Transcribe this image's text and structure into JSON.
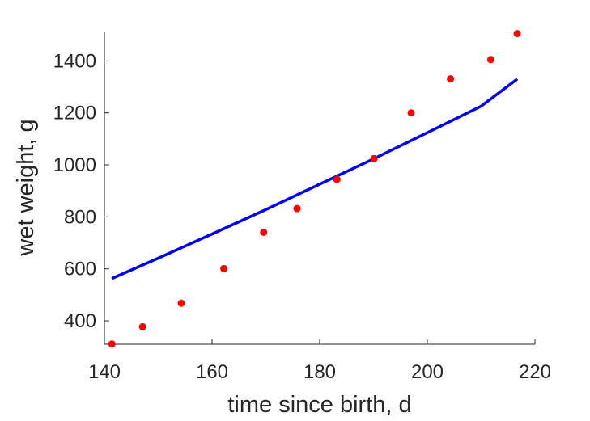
{
  "chart_data": {
    "type": "scatter",
    "xlabel": "time since birth, d",
    "ylabel": "wet weight, g",
    "xlim": [
      140,
      220
    ],
    "ylim": [
      310,
      1510
    ],
    "xticks": [
      140,
      160,
      180,
      200,
      220
    ],
    "yticks": [
      400,
      600,
      800,
      1000,
      1200,
      1400
    ],
    "grid": false,
    "series": [
      {
        "type": "scatter",
        "color": "#ff0000",
        "points": [
          [
            141.4,
            311
          ],
          [
            147.1,
            377
          ],
          [
            154.3,
            468
          ],
          [
            162.2,
            601
          ],
          [
            169.6,
            741
          ],
          [
            175.8,
            832
          ],
          [
            183.2,
            944
          ],
          [
            190.1,
            1024
          ],
          [
            197.0,
            1200
          ],
          [
            204.3,
            1331
          ],
          [
            211.8,
            1405
          ],
          [
            216.7,
            1505
          ]
        ]
      },
      {
        "type": "line",
        "color": "#0000ee",
        "points": [
          [
            141.4,
            563
          ],
          [
            150,
            641
          ],
          [
            160,
            734
          ],
          [
            170,
            828
          ],
          [
            180,
            926
          ],
          [
            190,
            1023
          ],
          [
            200,
            1124
          ],
          [
            210,
            1226
          ],
          [
            216.7,
            1330
          ]
        ]
      }
    ]
  }
}
